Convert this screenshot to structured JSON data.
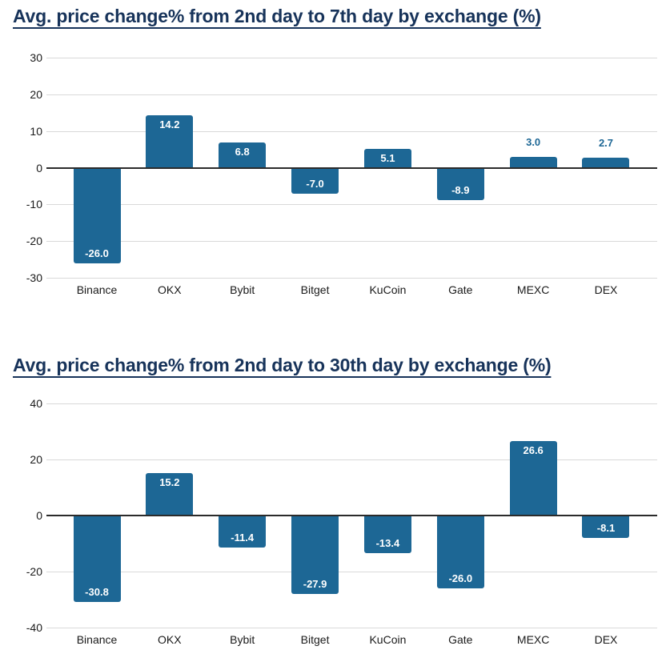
{
  "colors": {
    "bar": "#1d6795",
    "title_text": "#17335a",
    "gridline": "#d9d9d9",
    "zero_axis": "#2b2b2b",
    "tick_text": "#1a1a1a",
    "bar_label_inside": "#ffffff",
    "bar_label_outside": "#1d6795"
  },
  "chart_data": [
    {
      "type": "bar",
      "title": "Avg. price change% from 2nd day to 7th day by exchange (%)",
      "categories": [
        "Binance",
        "OKX",
        "Bybit",
        "Bitget",
        "KuCoin",
        "Gate",
        "MEXC",
        "DEX"
      ],
      "values": [
        -26.0,
        14.2,
        6.8,
        -7.0,
        5.1,
        -8.9,
        3.0,
        2.7
      ],
      "xlabel": "",
      "ylabel": "",
      "ylim": [
        -30,
        30
      ],
      "yticks": [
        30,
        20,
        10,
        0,
        -10,
        -20,
        -30
      ],
      "grid": true,
      "legend": "none",
      "value_labels": [
        "-26.0",
        "14.2",
        "6.8",
        "-7.0",
        "5.1",
        "-8.9",
        "3.0",
        "2.7"
      ]
    },
    {
      "type": "bar",
      "title": "Avg. price change% from 2nd day to 30th day by exchange (%)",
      "categories": [
        "Binance",
        "OKX",
        "Bybit",
        "Bitget",
        "KuCoin",
        "Gate",
        "MEXC",
        "DEX"
      ],
      "values": [
        -30.8,
        15.2,
        -11.4,
        -27.9,
        -13.4,
        -26.0,
        26.6,
        -8.1
      ],
      "xlabel": "",
      "ylabel": "",
      "ylim": [
        -40,
        40
      ],
      "yticks": [
        40,
        20,
        0,
        -20,
        -40
      ],
      "grid": true,
      "legend": "none",
      "value_labels": [
        "-30.8",
        "15.2",
        "-11.4",
        "-27.9",
        "-13.4",
        "-26.0",
        "26.6",
        "-8.1"
      ]
    }
  ]
}
